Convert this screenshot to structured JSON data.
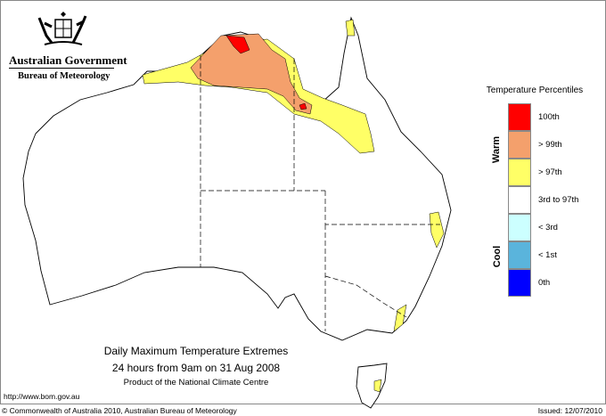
{
  "header": {
    "crest": "Commonwealth coat of arms",
    "government": "Australian Government",
    "bureau": "Bureau of Meteorology"
  },
  "title": {
    "line1": "Daily Maximum Temperature Extremes",
    "line2": "24 hours from 9am on 31 Aug 2008",
    "line3": "Product of the National Climate Centre"
  },
  "legend": {
    "title": "Temperature Percentiles",
    "warm_label": "Warm",
    "cool_label": "Cool",
    "items": [
      {
        "label": "100th",
        "color": "#ff0000"
      },
      {
        "label": "> 99th",
        "color": "#f4a06c"
      },
      {
        "label": "> 97th",
        "color": "#ffff66"
      },
      {
        "label": "3rd to 97th",
        "color": "#ffffff"
      },
      {
        "label": "< 3rd",
        "color": "#ccffff"
      },
      {
        "label": "< 1st",
        "color": "#5ab4dc"
      },
      {
        "label": "0th",
        "color": "#0000ff"
      }
    ]
  },
  "footer": {
    "url": "http://www.bom.gov.au",
    "copyright": "© Commonwealth of Australia 2010, Australian Bureau of Meteorology",
    "issued": "Issued: 12/07/2010"
  }
}
